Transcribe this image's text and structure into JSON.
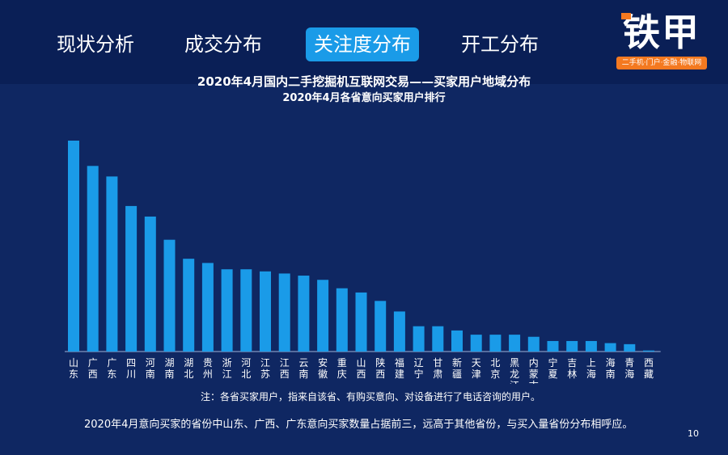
{
  "nav": {
    "tabs": [
      {
        "label": "现状分析",
        "active": false
      },
      {
        "label": "成交分布",
        "active": false
      },
      {
        "label": "关注度分布",
        "active": true
      },
      {
        "label": "开工分布",
        "active": false
      }
    ]
  },
  "logo": {
    "text": "铁甲",
    "tagline": "二手机·门户·金融·物联网"
  },
  "colors": {
    "background": "#0f2762",
    "bar": "#1a9be8",
    "active_tab": "#1a9be8",
    "logo_accent": "#f47920"
  },
  "chart_data": {
    "type": "bar",
    "title": "2020年4月国内二手挖掘机互联网交易——买家用户地域分布",
    "subtitle": "2020年4月各省意向买家用户排行",
    "categories": [
      "山东",
      "广西",
      "广东",
      "四川",
      "河南",
      "湖南",
      "湖北",
      "贵州",
      "浙江",
      "河北",
      "江苏",
      "江西",
      "云南",
      "安徽",
      "重庆",
      "山西",
      "陕西",
      "福建",
      "辽宁",
      "甘肃",
      "新疆",
      "天津",
      "北京",
      "黑龙江",
      "内蒙古",
      "宁夏",
      "吉林",
      "上海",
      "海南",
      "青海",
      "西藏"
    ],
    "values": [
      100,
      88,
      83,
      69,
      64,
      53,
      44,
      42,
      39,
      39,
      38,
      37,
      36,
      34,
      30,
      28,
      24,
      19,
      12,
      12,
      10,
      8,
      8,
      8,
      7,
      5,
      5,
      5,
      4,
      3.5,
      0.5
    ],
    "ylim": [
      0,
      100
    ],
    "grid": false,
    "legend": "none"
  },
  "note": "注：各省买家用户，指来自该省、有购买意向、对设备进行了电话咨询的用户。",
  "summary": "2020年4月意向买家的省份中山东、广西、广东意向买家数量占据前三，远高于其他省份，与买入量省份分布相呼应。",
  "page_number": "10"
}
